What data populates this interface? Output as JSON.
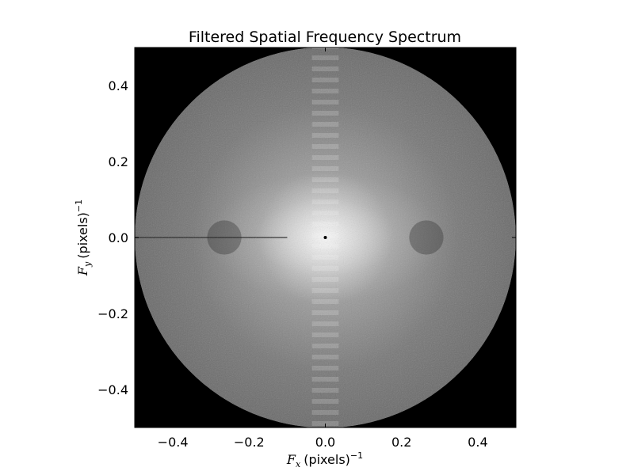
{
  "chart_data": {
    "type": "heatmap",
    "title": "Filtered Spatial Frequency Spectrum",
    "xlabel": {
      "symbol": "F",
      "subscript": "x",
      "unit": "(pixels)",
      "exponent": "−1"
    },
    "ylabel": {
      "symbol": "F",
      "subscript": "y",
      "unit": "(pixels)",
      "exponent": "−1"
    },
    "xlim": [
      -0.5,
      0.5
    ],
    "ylim": [
      -0.5,
      0.5
    ],
    "x_ticks": [
      -0.4,
      -0.2,
      0.0,
      0.2,
      0.4
    ],
    "y_ticks": [
      -0.4,
      -0.2,
      0.0,
      0.2,
      0.4
    ],
    "x_tick_labels": [
      "−0.4",
      "−0.2",
      "0.0",
      "0.2",
      "0.4"
    ],
    "y_tick_labels": [
      "−0.4",
      "−0.2",
      "0.0",
      "0.2",
      "0.4"
    ],
    "filter": {
      "shape": "circle",
      "radius": 0.5,
      "center": [
        0.0,
        0.0
      ]
    },
    "colormap": "gray",
    "background_color": "#000000",
    "grid": false
  }
}
